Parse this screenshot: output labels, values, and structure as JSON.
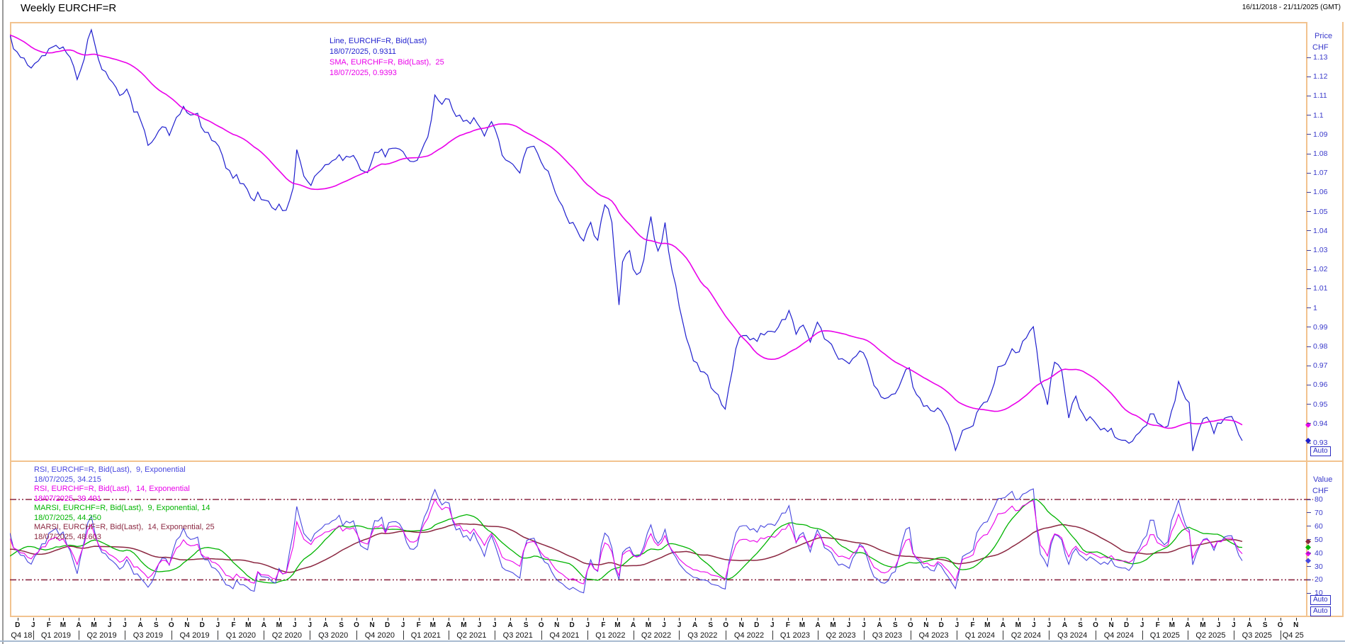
{
  "window": {
    "title": "Weekly EURCHF=R",
    "date_range": "16/11/2018 - 21/11/2025 (GMT)"
  },
  "price_panel": {
    "axis": {
      "title1": "Price",
      "title2": "CHF",
      "auto": "Auto",
      "ticks": [
        "1.13",
        "1.12",
        "1.11",
        "1.1",
        "1.09",
        "1.08",
        "1.07",
        "1.06",
        "1.05",
        "1.04",
        "1.03",
        "1.02",
        "1.01",
        "1",
        "0.99",
        "0.98",
        "0.97",
        "0.96",
        "0.95",
        "0.94",
        "0.93"
      ]
    },
    "legend": [
      {
        "label": "Line, EURCHF=R, Bid(Last)",
        "value": "18/07/2025, 0.9311",
        "color": "#1F1FCE"
      },
      {
        "label": "SMA, EURCHF=R, Bid(Last),  25",
        "value": "18/07/2025, 0.9393",
        "color": "#EA00EA"
      }
    ],
    "markers": [
      {
        "value": 0.9393,
        "color": "#EA00EA"
      },
      {
        "value": 0.9311,
        "color": "#1F1FCE"
      }
    ]
  },
  "rsi_panel": {
    "axis": {
      "title1": "Value",
      "title2": "CHF",
      "auto": "Auto",
      "ticks": [
        "80",
        "70",
        "60",
        "50",
        "40",
        "30",
        "20",
        "10"
      ]
    },
    "legend": [
      {
        "label": "RSI, EURCHF=R, Bid(Last),  9, Exponential",
        "value": "18/07/2025, 34.215",
        "color": "#4747DF"
      },
      {
        "label": "RSI, EURCHF=R, Bid(Last),  14, Exponential",
        "value": "18/07/2025, 39.491",
        "color": "#EA00EA"
      },
      {
        "label": "MARSI, EURCHF=R, Bid(Last),  9, Exponential, 14",
        "value": "18/07/2025, 44.250",
        "color": "#00B400"
      },
      {
        "label": "MARSI, EURCHF=R, Bid(Last),  14, Exponential, 25",
        "value": "18/07/2025, 48.603",
        "color": "#8B2741"
      }
    ],
    "thresholds": [
      80,
      20
    ],
    "markers": [
      {
        "value": 48.603,
        "color": "#8B2741"
      },
      {
        "value": 44.25,
        "color": "#00B400"
      },
      {
        "value": 39.491,
        "color": "#EA00EA"
      },
      {
        "value": 34.215,
        "color": "#4747DF"
      }
    ]
  },
  "time_axis": {
    "auto": "Auto",
    "months": [
      "D",
      "J",
      "F",
      "M",
      "A",
      "M",
      "J",
      "J",
      "A",
      "S",
      "O",
      "N",
      "D",
      "J",
      "F",
      "M",
      "A",
      "M",
      "J",
      "J",
      "A",
      "S",
      "O",
      "N",
      "D",
      "J",
      "F",
      "M",
      "A",
      "M",
      "J",
      "J",
      "A",
      "S",
      "O",
      "N",
      "D",
      "J",
      "F",
      "M",
      "A",
      "M",
      "J",
      "J",
      "A",
      "S",
      "O",
      "N",
      "D",
      "J",
      "F",
      "M",
      "A",
      "M",
      "J",
      "J",
      "A",
      "S",
      "O",
      "N",
      "D",
      "J",
      "F",
      "M",
      "A",
      "M",
      "J",
      "J",
      "A",
      "S",
      "O",
      "N",
      "D",
      "J",
      "F",
      "M",
      "A",
      "M",
      "J",
      "J",
      "A",
      "S",
      "O",
      "N"
    ],
    "quarters": [
      "Q4 18",
      "Q1 2019",
      "Q2 2019",
      "Q3 2019",
      "Q4 2019",
      "Q1 2020",
      "Q2 2020",
      "Q3 2020",
      "Q4 2020",
      "Q1 2021",
      "Q2 2021",
      "Q3 2021",
      "Q4 2021",
      "Q1 2022",
      "Q2 2022",
      "Q3 2022",
      "Q4 2022",
      "Q1 2023",
      "Q2 2023",
      "Q3 2023",
      "Q4 2023",
      "Q1 2024",
      "Q2 2024",
      "Q3 2024",
      "Q4 2024",
      "Q1 2025",
      "Q2 2025",
      "Q3 2025",
      "Q4 25"
    ]
  },
  "chart_data": {
    "type": "line",
    "title": "Weekly EURCHF=R",
    "x_start": "2018-11-16",
    "x_end": "2025-11-21",
    "last_point_date": "2025-07-18",
    "price_axis": {
      "ticks": [
        1.13,
        1.12,
        1.11,
        1.1,
        1.09,
        1.08,
        1.07,
        1.06,
        1.05,
        1.04,
        1.03,
        1.02,
        1.01,
        1,
        0.99,
        0.98,
        0.97,
        0.96,
        0.95,
        0.94,
        0.93
      ],
      "range": [
        0.92,
        1.148
      ]
    },
    "value_axis": {
      "ticks": [
        80,
        70,
        60,
        50,
        40,
        30,
        20,
        10
      ],
      "range": [
        0,
        104
      ],
      "threshold_lines": [
        80,
        20
      ]
    },
    "series": [
      {
        "name": "Line, EURCHF=R, Bid(Last)",
        "panel": "price",
        "color": "#1F1FCE",
        "last": 0.9311,
        "anchors": [
          [
            "2018-06-01",
            1.153
          ],
          [
            "2018-07-06",
            1.158
          ],
          [
            "2018-08-10",
            1.138
          ],
          [
            "2018-08-24",
            1.125
          ],
          [
            "2018-09-21",
            1.128
          ],
          [
            "2018-10-05",
            1.141
          ],
          [
            "2018-10-26",
            1.138
          ],
          [
            "2018-11-09",
            1.136
          ],
          [
            "2018-11-16",
            1.141
          ],
          [
            "2018-11-30",
            1.132
          ],
          [
            "2018-12-14",
            1.128
          ],
          [
            "2018-12-28",
            1.126
          ],
          [
            "2019-01-11",
            1.13
          ],
          [
            "2019-01-25",
            1.132
          ],
          [
            "2019-02-08",
            1.135
          ],
          [
            "2019-02-22",
            1.136
          ],
          [
            "2019-03-08",
            1.134
          ],
          [
            "2019-03-22",
            1.124
          ],
          [
            "2019-03-29",
            1.118
          ],
          [
            "2019-04-12",
            1.131
          ],
          [
            "2019-04-26",
            1.144
          ],
          [
            "2019-05-10",
            1.13
          ],
          [
            "2019-05-24",
            1.122
          ],
          [
            "2019-06-07",
            1.116
          ],
          [
            "2019-06-21",
            1.11
          ],
          [
            "2019-07-05",
            1.112
          ],
          [
            "2019-07-19",
            1.104
          ],
          [
            "2019-08-02",
            1.096
          ],
          [
            "2019-08-16",
            1.085
          ],
          [
            "2019-08-30",
            1.089
          ],
          [
            "2019-09-13",
            1.096
          ],
          [
            "2019-09-27",
            1.09
          ],
          [
            "2019-10-11",
            1.098
          ],
          [
            "2019-10-25",
            1.103
          ],
          [
            "2019-11-08",
            1.1
          ],
          [
            "2019-11-22",
            1.099
          ],
          [
            "2019-12-06",
            1.093
          ],
          [
            "2019-12-20",
            1.087
          ],
          [
            "2020-01-03",
            1.084
          ],
          [
            "2020-01-17",
            1.074
          ],
          [
            "2020-01-31",
            1.069
          ],
          [
            "2020-02-14",
            1.064
          ],
          [
            "2020-02-28",
            1.061
          ],
          [
            "2020-03-13",
            1.054
          ],
          [
            "2020-03-20",
            1.06
          ],
          [
            "2020-04-03",
            1.055
          ],
          [
            "2020-04-17",
            1.053
          ],
          [
            "2020-05-01",
            1.052
          ],
          [
            "2020-05-15",
            1.051
          ],
          [
            "2020-05-29",
            1.061
          ],
          [
            "2020-06-05",
            1.081
          ],
          [
            "2020-06-19",
            1.066
          ],
          [
            "2020-07-03",
            1.063
          ],
          [
            "2020-07-17",
            1.071
          ],
          [
            "2020-07-31",
            1.075
          ],
          [
            "2020-08-14",
            1.076
          ],
          [
            "2020-08-28",
            1.077
          ],
          [
            "2020-09-11",
            1.078
          ],
          [
            "2020-09-25",
            1.079
          ],
          [
            "2020-10-09",
            1.072
          ],
          [
            "2020-10-23",
            1.07
          ],
          [
            "2020-11-06",
            1.08
          ],
          [
            "2020-11-20",
            1.081
          ],
          [
            "2020-12-04",
            1.081
          ],
          [
            "2020-12-18",
            1.083
          ],
          [
            "2021-01-01",
            1.08
          ],
          [
            "2021-01-15",
            1.077
          ],
          [
            "2021-01-29",
            1.078
          ],
          [
            "2021-02-12",
            1.085
          ],
          [
            "2021-02-26",
            1.097
          ],
          [
            "2021-03-05",
            1.109
          ],
          [
            "2021-03-19",
            1.107
          ],
          [
            "2021-04-02",
            1.107
          ],
          [
            "2021-04-16",
            1.101
          ],
          [
            "2021-04-30",
            1.098
          ],
          [
            "2021-05-14",
            1.095
          ],
          [
            "2021-05-28",
            1.097
          ],
          [
            "2021-06-11",
            1.09
          ],
          [
            "2021-06-25",
            1.096
          ],
          [
            "2021-07-09",
            1.086
          ],
          [
            "2021-07-23",
            1.077
          ],
          [
            "2021-08-06",
            1.074
          ],
          [
            "2021-08-20",
            1.071
          ],
          [
            "2021-09-03",
            1.082
          ],
          [
            "2021-09-17",
            1.086
          ],
          [
            "2021-10-01",
            1.076
          ],
          [
            "2021-10-15",
            1.071
          ],
          [
            "2021-10-29",
            1.059
          ],
          [
            "2021-11-12",
            1.053
          ],
          [
            "2021-11-26",
            1.044
          ],
          [
            "2021-12-10",
            1.042
          ],
          [
            "2021-12-24",
            1.037
          ],
          [
            "2022-01-07",
            1.042
          ],
          [
            "2022-01-21",
            1.036
          ],
          [
            "2022-02-04",
            1.055
          ],
          [
            "2022-02-18",
            1.045
          ],
          [
            "2022-03-04",
            1.001
          ],
          [
            "2022-03-11",
            1.023
          ],
          [
            "2022-03-25",
            1.03
          ],
          [
            "2022-04-08",
            1.015
          ],
          [
            "2022-04-22",
            1.026
          ],
          [
            "2022-05-06",
            1.046
          ],
          [
            "2022-05-20",
            1.028
          ],
          [
            "2022-06-03",
            1.042
          ],
          [
            "2022-06-17",
            1.02
          ],
          [
            "2022-07-01",
            1.0
          ],
          [
            "2022-07-15",
            0.984
          ],
          [
            "2022-07-29",
            0.975
          ],
          [
            "2022-08-12",
            0.967
          ],
          [
            "2022-08-26",
            0.964
          ],
          [
            "2022-09-09",
            0.956
          ],
          [
            "2022-09-30",
            0.948
          ],
          [
            "2022-10-14",
            0.968
          ],
          [
            "2022-10-28",
            0.986
          ],
          [
            "2022-11-11",
            0.983
          ],
          [
            "2022-11-25",
            0.985
          ],
          [
            "2022-12-09",
            0.985
          ],
          [
            "2022-12-23",
            0.988
          ],
          [
            "2023-01-06",
            0.987
          ],
          [
            "2023-01-20",
            0.993
          ],
          [
            "2023-02-03",
            0.997
          ],
          [
            "2023-02-17",
            0.986
          ],
          [
            "2023-03-03",
            0.992
          ],
          [
            "2023-03-17",
            0.982
          ],
          [
            "2023-03-31",
            0.992
          ],
          [
            "2023-04-14",
            0.985
          ],
          [
            "2023-04-28",
            0.98
          ],
          [
            "2023-05-12",
            0.975
          ],
          [
            "2023-05-26",
            0.971
          ],
          [
            "2023-06-09",
            0.972
          ],
          [
            "2023-06-23",
            0.978
          ],
          [
            "2023-07-07",
            0.972
          ],
          [
            "2023-07-21",
            0.962
          ],
          [
            "2023-08-04",
            0.955
          ],
          [
            "2023-08-18",
            0.953
          ],
          [
            "2023-09-01",
            0.955
          ],
          [
            "2023-09-15",
            0.964
          ],
          [
            "2023-09-29",
            0.968
          ],
          [
            "2023-10-13",
            0.955
          ],
          [
            "2023-10-27",
            0.95
          ],
          [
            "2023-11-10",
            0.948
          ],
          [
            "2023-11-24",
            0.947
          ],
          [
            "2023-12-08",
            0.944
          ],
          [
            "2023-12-29",
            0.926
          ],
          [
            "2024-01-12",
            0.935
          ],
          [
            "2024-01-26",
            0.938
          ],
          [
            "2024-02-09",
            0.943
          ],
          [
            "2024-02-23",
            0.952
          ],
          [
            "2024-03-08",
            0.955
          ],
          [
            "2024-03-22",
            0.968
          ],
          [
            "2024-04-05",
            0.972
          ],
          [
            "2024-04-19",
            0.977
          ],
          [
            "2024-05-03",
            0.978
          ],
          [
            "2024-05-17",
            0.984
          ],
          [
            "2024-05-31",
            0.991
          ],
          [
            "2024-06-14",
            0.962
          ],
          [
            "2024-06-28",
            0.952
          ],
          [
            "2024-07-12",
            0.972
          ],
          [
            "2024-07-26",
            0.967
          ],
          [
            "2024-08-09",
            0.942
          ],
          [
            "2024-08-23",
            0.954
          ],
          [
            "2024-09-06",
            0.945
          ],
          [
            "2024-09-20",
            0.943
          ],
          [
            "2024-10-04",
            0.939
          ],
          [
            "2024-10-18",
            0.937
          ],
          [
            "2024-11-01",
            0.936
          ],
          [
            "2024-11-15",
            0.931
          ],
          [
            "2024-11-29",
            0.93
          ],
          [
            "2024-12-13",
            0.932
          ],
          [
            "2024-12-27",
            0.936
          ],
          [
            "2025-01-10",
            0.942
          ],
          [
            "2025-01-24",
            0.945
          ],
          [
            "2025-02-07",
            0.939
          ],
          [
            "2025-02-21",
            0.938
          ],
          [
            "2025-03-07",
            0.952
          ],
          [
            "2025-03-14",
            0.961
          ],
          [
            "2025-03-28",
            0.954
          ],
          [
            "2025-04-04",
            0.95
          ],
          [
            "2025-04-11",
            0.927
          ],
          [
            "2025-04-25",
            0.936
          ],
          [
            "2025-05-09",
            0.944
          ],
          [
            "2025-05-23",
            0.937
          ],
          [
            "2025-06-06",
            0.939
          ],
          [
            "2025-06-27",
            0.945
          ],
          [
            "2025-07-04",
            0.94
          ],
          [
            "2025-07-11",
            0.935
          ],
          [
            "2025-07-18",
            0.9311
          ]
        ]
      },
      {
        "name": "SMA, EURCHF=R, Bid(Last), 25",
        "panel": "price",
        "color": "#EA00EA",
        "last": 0.9393,
        "derived": {
          "op": "sma",
          "period": 25,
          "of": "price"
        }
      },
      {
        "name": "RSI, EURCHF=R, Bid(Last), 9, Exponential",
        "panel": "value",
        "color": "#4747DF",
        "last": 34.215,
        "derived": {
          "op": "rsi",
          "period": 9,
          "of": "price"
        }
      },
      {
        "name": "RSI, EURCHF=R, Bid(Last), 14, Exponential",
        "panel": "value",
        "color": "#EA00EA",
        "last": 39.491,
        "derived": {
          "op": "rsi",
          "period": 14,
          "of": "price"
        }
      },
      {
        "name": "MARSI, EURCHF=R, Bid(Last), 9, Exponential, 14",
        "panel": "value",
        "color": "#00B400",
        "last": 44.25,
        "derived": {
          "op": "sma_of_rsi",
          "rsi_period": 9,
          "ma_period": 14
        }
      },
      {
        "name": "MARSI, EURCHF=R, Bid(Last), 14, Exponential, 25",
        "panel": "value",
        "color": "#8B2741",
        "last": 48.603,
        "derived": {
          "op": "sma_of_rsi",
          "rsi_period": 14,
          "ma_period": 25
        }
      }
    ]
  }
}
